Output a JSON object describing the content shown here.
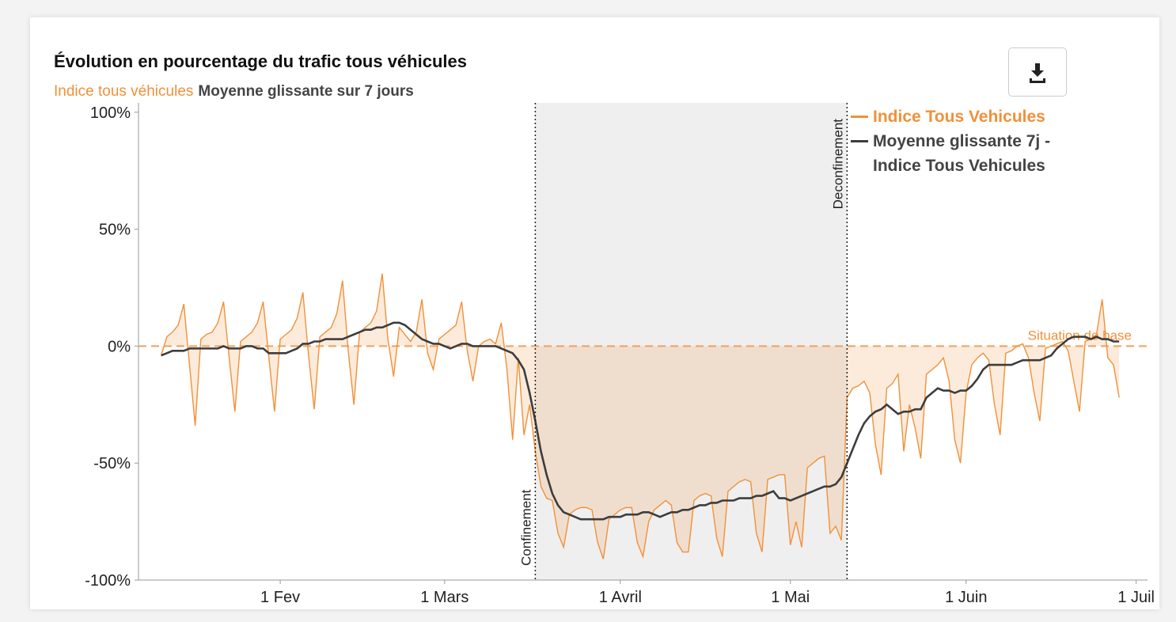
{
  "chart_data": {
    "type": "line",
    "title": "Évolution en pourcentage du trafic tous véhicules",
    "subtitle": [
      "Indice tous véhicules",
      "Moyenne glissante sur 7 jours"
    ],
    "x": [
      "01-11",
      "01-12",
      "01-13",
      "01-14",
      "01-15",
      "01-16",
      "01-17",
      "01-18",
      "01-19",
      "01-20",
      "01-21",
      "01-22",
      "01-23",
      "01-24",
      "01-25",
      "01-26",
      "01-27",
      "01-28",
      "01-29",
      "01-30",
      "01-31",
      "02-01",
      "02-02",
      "02-03",
      "02-04",
      "02-05",
      "02-06",
      "02-07",
      "02-08",
      "02-09",
      "02-10",
      "02-11",
      "02-12",
      "02-13",
      "02-14",
      "02-15",
      "02-16",
      "02-17",
      "02-18",
      "02-19",
      "02-20",
      "02-21",
      "02-22",
      "02-23",
      "02-24",
      "02-25",
      "02-26",
      "02-27",
      "02-28",
      "02-29",
      "03-01",
      "03-02",
      "03-03",
      "03-04",
      "03-05",
      "03-06",
      "03-07",
      "03-08",
      "03-09",
      "03-10",
      "03-11",
      "03-12",
      "03-13",
      "03-14",
      "03-15",
      "03-16",
      "03-17",
      "03-18",
      "03-19",
      "03-20",
      "03-21",
      "03-22",
      "03-23",
      "03-24",
      "03-25",
      "03-26",
      "03-27",
      "03-28",
      "03-29",
      "03-30",
      "03-31",
      "04-01",
      "04-02",
      "04-03",
      "04-04",
      "04-05",
      "04-06",
      "04-07",
      "04-08",
      "04-09",
      "04-10",
      "04-11",
      "04-12",
      "04-13",
      "04-14",
      "04-15",
      "04-16",
      "04-17",
      "04-18",
      "04-19",
      "04-20",
      "04-21",
      "04-22",
      "04-23",
      "04-24",
      "04-25",
      "04-26",
      "04-27",
      "04-28",
      "04-29",
      "04-30",
      "05-01",
      "05-02",
      "05-03",
      "05-04",
      "05-05",
      "05-06",
      "05-07",
      "05-08",
      "05-09",
      "05-10",
      "05-11",
      "05-12",
      "05-13",
      "05-14",
      "05-15",
      "05-16",
      "05-17",
      "05-18",
      "05-19",
      "05-20",
      "05-21",
      "05-22",
      "05-23",
      "05-24",
      "05-25",
      "05-26",
      "05-27",
      "05-28",
      "05-29",
      "05-30",
      "05-31",
      "06-01",
      "06-02",
      "06-03",
      "06-04",
      "06-05",
      "06-06",
      "06-07",
      "06-08",
      "06-09",
      "06-10",
      "06-11",
      "06-12",
      "06-13",
      "06-14",
      "06-15",
      "06-16",
      "06-17",
      "06-18",
      "06-19",
      "06-20",
      "06-21",
      "06-22",
      "06-23",
      "06-24",
      "06-25",
      "06-26",
      "06-27",
      "06-28"
    ],
    "series": [
      {
        "name": "Indice Tous Vehicules",
        "color": "#f0913a",
        "values": [
          -4,
          4,
          6,
          9,
          18,
          -8,
          -34,
          3,
          5,
          6,
          10,
          19,
          -5,
          -28,
          2,
          4,
          6,
          10,
          19,
          -5,
          -28,
          3,
          5,
          7,
          12,
          23,
          -4,
          -27,
          4,
          6,
          8,
          14,
          28,
          -2,
          -25,
          6,
          8,
          10,
          15,
          31,
          3,
          -13,
          8,
          5,
          2,
          6,
          20,
          -3,
          -10,
          3,
          5,
          7,
          9,
          19,
          -2,
          -15,
          0,
          2,
          3,
          1,
          10,
          -10,
          -40,
          -5,
          -38,
          -25,
          -45,
          -60,
          -65,
          -66,
          -80,
          -86,
          -72,
          -70,
          -69,
          -69,
          -70,
          -84,
          -91,
          -74,
          -72,
          -70,
          -69,
          -69,
          -84,
          -90,
          -75,
          -70,
          -68,
          -66,
          -68,
          -84,
          -88,
          -88,
          -66,
          -64,
          -63,
          -64,
          -82,
          -90,
          -62,
          -60,
          -58,
          -57,
          -58,
          -80,
          -88,
          -57,
          -56,
          -55,
          -55,
          -85,
          -75,
          -86,
          -52,
          -50,
          -48,
          -47,
          -80,
          -77,
          -83,
          -22,
          -18,
          -17,
          -15,
          -20,
          -42,
          -55,
          -18,
          -16,
          -12,
          -45,
          -25,
          -35,
          -48,
          -12,
          -10,
          -8,
          -5,
          -15,
          -40,
          -50,
          -20,
          -8,
          -5,
          -3,
          -6,
          -25,
          -38,
          -3,
          -2,
          0,
          1,
          -5,
          -20,
          -32,
          -1,
          0,
          1,
          2,
          -2,
          -15,
          -28,
          2,
          3,
          5,
          20,
          -5,
          -8,
          -22
        ]
      },
      {
        "name": "Moyenne glissante 7j - Indice Tous Vehicules",
        "color": "#3d3d3d",
        "values": [
          -4,
          -3,
          -2,
          -2,
          -2,
          -1,
          -1,
          -1,
          -1,
          -1,
          -1,
          0,
          -1,
          -1,
          -1,
          0,
          0,
          -1,
          -1,
          -3,
          -3,
          -3,
          -3,
          -2,
          -1,
          1,
          1,
          2,
          2,
          3,
          3,
          3,
          3,
          4,
          5,
          6,
          7,
          7,
          8,
          8,
          9,
          10,
          10,
          9,
          7,
          5,
          3,
          2,
          1,
          1,
          0,
          -1,
          0,
          1,
          1,
          0,
          0,
          0,
          0,
          0,
          -1,
          -2,
          -3,
          -6,
          -10,
          -20,
          -32,
          -45,
          -55,
          -63,
          -68,
          -71,
          -72,
          -73,
          -74,
          -74,
          -74,
          -74,
          -74,
          -73,
          -73,
          -73,
          -72,
          -72,
          -72,
          -71,
          -71,
          -72,
          -73,
          -72,
          -71,
          -71,
          -70,
          -70,
          -69,
          -68,
          -68,
          -67,
          -67,
          -66,
          -66,
          -66,
          -65,
          -65,
          -65,
          -64,
          -64,
          -63,
          -62,
          -65,
          -65,
          -66,
          -65,
          -64,
          -63,
          -62,
          -61,
          -60,
          -60,
          -59,
          -56,
          -50,
          -44,
          -38,
          -33,
          -30,
          -28,
          -27,
          -25,
          -27,
          -29,
          -28,
          -28,
          -27,
          -27,
          -22,
          -20,
          -18,
          -19,
          -19,
          -20,
          -19,
          -19,
          -17,
          -14,
          -10,
          -8,
          -8,
          -8,
          -8,
          -8,
          -7,
          -6,
          -6,
          -6,
          -6,
          -5,
          -4,
          -1,
          1,
          3,
          4,
          4,
          4,
          3,
          4,
          3,
          3,
          2,
          2
        ]
      }
    ],
    "xlim": [
      "01-07",
      "07-03"
    ],
    "xticks": [
      {
        "value": "02-01",
        "label": "1 Fev"
      },
      {
        "value": "03-01",
        "label": "1 Mars"
      },
      {
        "value": "04-01",
        "label": "1 Avril"
      },
      {
        "value": "05-01",
        "label": "1 Mai"
      },
      {
        "value": "06-01",
        "label": "1 Juin"
      },
      {
        "value": "07-01",
        "label": "1 Juil"
      }
    ],
    "ylim": [
      -100,
      104
    ],
    "yticks": [
      {
        "value": 100,
        "label": "100%"
      },
      {
        "value": 50,
        "label": "50%"
      },
      {
        "value": 0,
        "label": "0%"
      },
      {
        "value": -50,
        "label": "-50%"
      },
      {
        "value": -100,
        "label": "-100%"
      }
    ],
    "annotations": [
      {
        "text": "Confinement",
        "x": "03-17"
      },
      {
        "text": "Deconfinement",
        "x": "05-11"
      }
    ],
    "baseline": {
      "text": "Situation de base",
      "value": 0
    },
    "legend": "top-right"
  }
}
